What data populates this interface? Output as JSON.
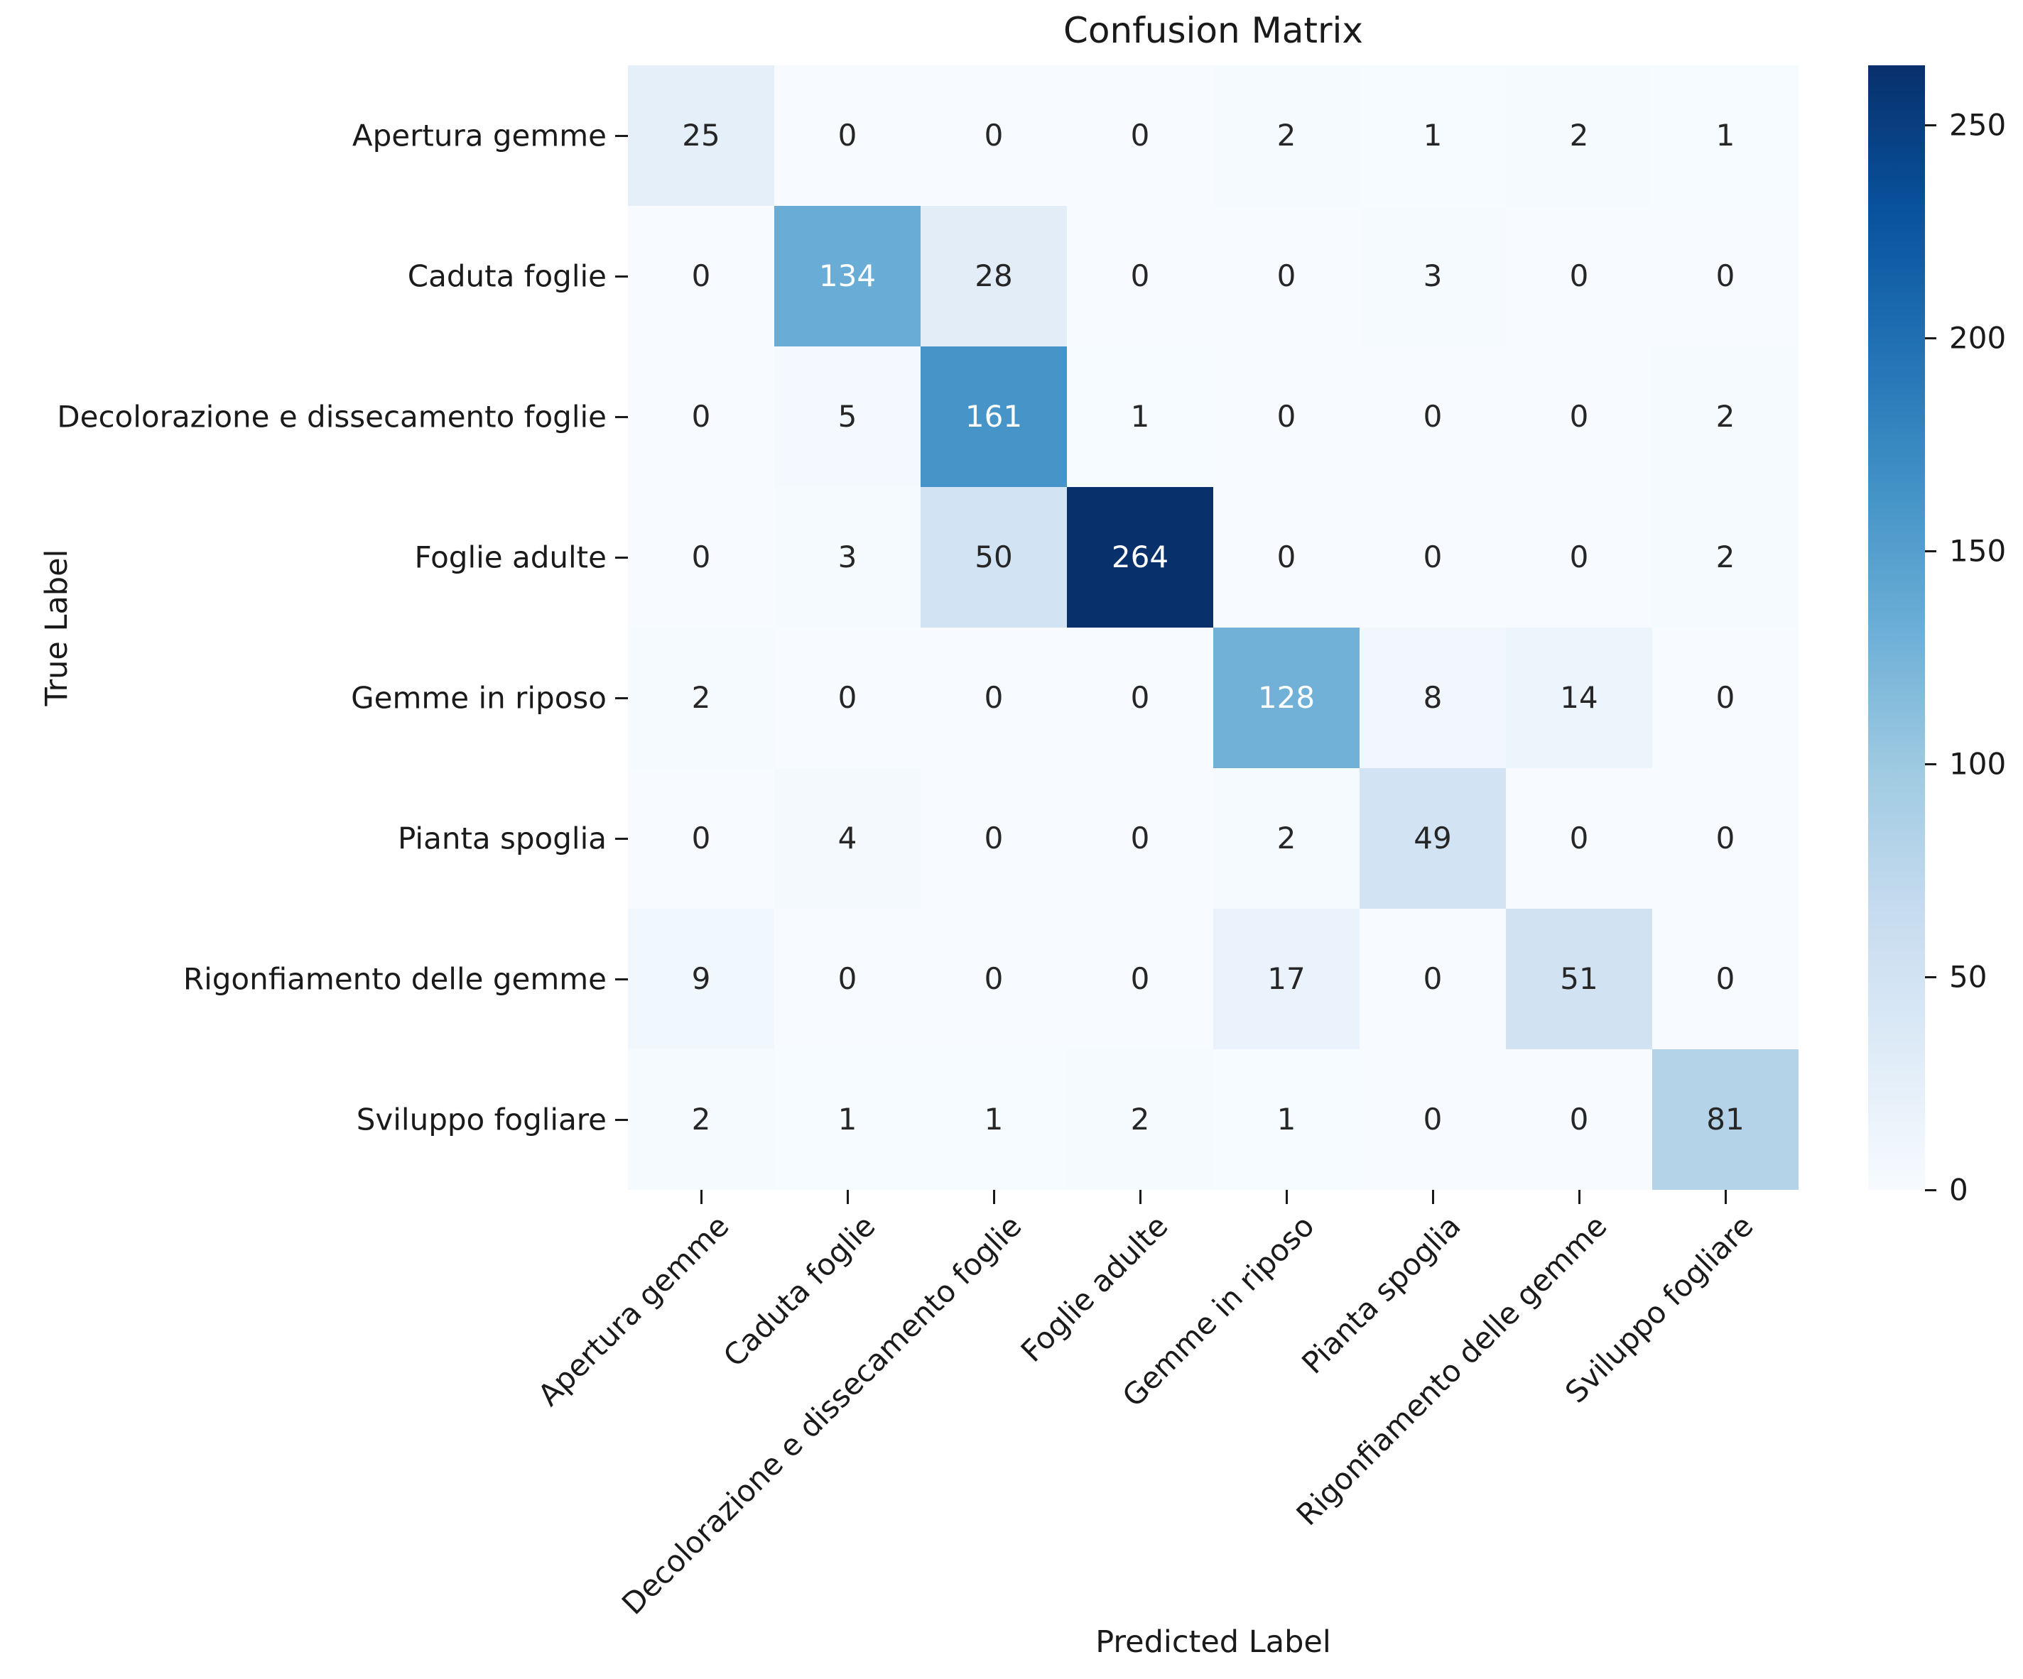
{
  "title": "Confusion Matrix",
  "xlabel": "Predicted Label",
  "ylabel": "True Label",
  "chart_data": {
    "type": "heatmap",
    "title": "Confusion Matrix",
    "xlabel": "Predicted Label",
    "ylabel": "True Label",
    "x_tick_labels": [
      "Apertura gemme",
      "Caduta foglie",
      "Decolorazione e dissecamento foglie",
      "Foglie adulte",
      "Gemme in riposo",
      "Pianta spoglia",
      "Rigonfiamento delle gemme",
      "Sviluppo fogliare"
    ],
    "y_tick_labels": [
      "Apertura gemme",
      "Caduta foglie",
      "Decolorazione e dissecamento foglie",
      "Foglie adulte",
      "Gemme in riposo",
      "Pianta spoglia",
      "Rigonfiamento delle gemme",
      "Sviluppo fogliare"
    ],
    "matrix": [
      [
        25,
        0,
        0,
        0,
        2,
        1,
        2,
        1
      ],
      [
        0,
        134,
        28,
        0,
        0,
        3,
        0,
        0
      ],
      [
        0,
        5,
        161,
        1,
        0,
        0,
        0,
        2
      ],
      [
        0,
        3,
        50,
        264,
        0,
        0,
        0,
        2
      ],
      [
        2,
        0,
        0,
        0,
        128,
        8,
        14,
        0
      ],
      [
        0,
        4,
        0,
        0,
        2,
        49,
        0,
        0
      ],
      [
        9,
        0,
        0,
        0,
        17,
        0,
        51,
        0
      ],
      [
        2,
        1,
        1,
        2,
        1,
        0,
        0,
        81
      ]
    ],
    "vmin": 0,
    "vmax": 264,
    "colormap": "Blues",
    "colormap_stops": [
      "#f7fbff",
      "#deebf7",
      "#c6dbef",
      "#9ecae1",
      "#6baed6",
      "#4292c6",
      "#2171b5",
      "#08519c",
      "#08306b"
    ],
    "colorbar_ticks": [
      0,
      50,
      100,
      150,
      200,
      250
    ],
    "annotation_color_dark": "#262626",
    "annotation_color_light": "#ffffff",
    "grid": false,
    "legend_position": "right-colorbar"
  }
}
